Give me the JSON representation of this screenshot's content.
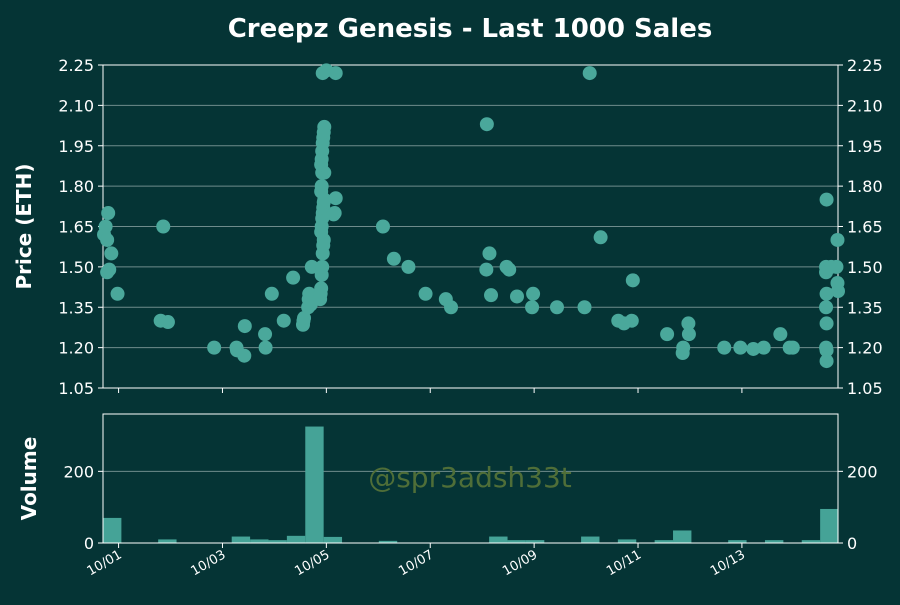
{
  "title": "Creepz Genesis - Last 1000 Sales",
  "watermark": "@spr3adsh33t",
  "colors": {
    "background": "#053435",
    "point": "#4aa89b",
    "bar": "#45a397",
    "grid": "#6f8c8c",
    "text": "#ffffff",
    "watermark": "#4f6e38"
  },
  "chart_data": [
    {
      "type": "scatter",
      "ylabel": "Price (ETH)",
      "ylim": [
        1.05,
        2.25
      ],
      "yticks": [
        1.05,
        1.2,
        1.35,
        1.5,
        1.65,
        1.8,
        1.95,
        2.1,
        2.25
      ],
      "ytick_labels": [
        "1.05",
        "1.20",
        "1.35",
        "1.50",
        "1.65",
        "1.80",
        "1.95",
        "2.10",
        "2.25"
      ],
      "y_axis_both_sides": true,
      "grid": true,
      "x_unit": "days since 10/01",
      "xlim": [
        -0.3,
        13.85
      ],
      "points": [
        [
          -0.28,
          1.62
        ],
        [
          -0.25,
          1.65
        ],
        [
          -0.22,
          1.6
        ],
        [
          -0.22,
          1.48
        ],
        [
          -0.2,
          1.7
        ],
        [
          -0.18,
          1.49
        ],
        [
          -0.14,
          1.55
        ],
        [
          -0.02,
          1.4
        ],
        [
          0.81,
          1.3
        ],
        [
          0.86,
          1.65
        ],
        [
          0.95,
          1.295
        ],
        [
          1.84,
          1.2
        ],
        [
          2.27,
          1.2
        ],
        [
          2.28,
          1.19
        ],
        [
          2.42,
          1.17
        ],
        [
          2.43,
          1.28
        ],
        [
          2.82,
          1.25
        ],
        [
          2.83,
          1.2
        ],
        [
          2.95,
          1.4
        ],
        [
          3.18,
          1.3
        ],
        [
          3.36,
          1.46
        ],
        [
          3.55,
          1.285
        ],
        [
          3.56,
          1.3
        ],
        [
          3.57,
          1.31
        ],
        [
          3.65,
          1.35
        ],
        [
          3.66,
          1.38
        ],
        [
          3.67,
          1.4
        ],
        [
          3.7,
          1.36
        ],
        [
          3.72,
          1.5
        ],
        [
          3.88,
          1.38
        ],
        [
          3.89,
          1.4
        ],
        [
          3.9,
          1.42
        ],
        [
          3.91,
          1.47
        ],
        [
          3.92,
          1.5
        ],
        [
          3.93,
          1.55
        ],
        [
          3.94,
          1.58
        ],
        [
          3.95,
          1.6
        ],
        [
          3.9,
          1.63
        ],
        [
          3.91,
          1.65
        ],
        [
          3.92,
          1.68
        ],
        [
          3.93,
          1.7
        ],
        [
          3.94,
          1.72
        ],
        [
          3.95,
          1.74
        ],
        [
          3.96,
          1.75
        ],
        [
          3.9,
          1.78
        ],
        [
          3.91,
          1.8
        ],
        [
          3.92,
          1.85
        ],
        [
          3.96,
          1.85
        ],
        [
          3.9,
          1.88
        ],
        [
          3.91,
          1.9
        ],
        [
          3.92,
          1.93
        ],
        [
          3.93,
          1.96
        ],
        [
          3.94,
          1.98
        ],
        [
          3.95,
          2.0
        ],
        [
          3.96,
          2.02
        ],
        [
          3.93,
          2.22
        ],
        [
          4.0,
          2.23
        ],
        [
          4.14,
          1.695
        ],
        [
          4.16,
          1.7
        ],
        [
          4.18,
          1.755
        ],
        [
          4.18,
          2.22
        ],
        [
          5.09,
          1.65
        ],
        [
          5.3,
          1.53
        ],
        [
          5.58,
          1.5
        ],
        [
          5.91,
          1.4
        ],
        [
          6.3,
          1.38
        ],
        [
          6.4,
          1.35
        ],
        [
          7.09,
          2.03
        ],
        [
          7.08,
          1.49
        ],
        [
          7.14,
          1.55
        ],
        [
          7.17,
          1.395
        ],
        [
          7.47,
          1.5
        ],
        [
          7.52,
          1.49
        ],
        [
          7.67,
          1.39
        ],
        [
          7.96,
          1.35
        ],
        [
          7.98,
          1.4
        ],
        [
          8.44,
          1.35
        ],
        [
          8.97,
          1.35
        ],
        [
          9.07,
          2.22
        ],
        [
          9.28,
          1.61
        ],
        [
          9.62,
          1.3
        ],
        [
          9.73,
          1.29
        ],
        [
          9.88,
          1.3
        ],
        [
          9.9,
          1.45
        ],
        [
          10.56,
          1.25
        ],
        [
          10.86,
          1.18
        ],
        [
          10.87,
          1.2
        ],
        [
          10.97,
          1.29
        ],
        [
          10.98,
          1.25
        ],
        [
          11.66,
          1.2
        ],
        [
          11.97,
          1.2
        ],
        [
          12.22,
          1.195
        ],
        [
          12.42,
          1.2
        ],
        [
          12.74,
          1.25
        ],
        [
          12.92,
          1.2
        ],
        [
          12.98,
          1.2
        ],
        [
          13.63,
          1.75
        ],
        [
          13.62,
          1.5
        ],
        [
          13.62,
          1.48
        ],
        [
          13.63,
          1.4
        ],
        [
          13.62,
          1.35
        ],
        [
          13.63,
          1.29
        ],
        [
          13.62,
          1.2
        ],
        [
          13.63,
          1.19
        ],
        [
          13.63,
          1.15
        ],
        [
          13.72,
          1.5
        ],
        [
          13.82,
          1.5
        ],
        [
          13.84,
          1.6
        ],
        [
          13.84,
          1.44
        ],
        [
          13.85,
          1.41
        ]
      ]
    },
    {
      "type": "bar",
      "ylabel": "Volume",
      "ylim": [
        0,
        360
      ],
      "yticks": [
        0,
        200
      ],
      "ytick_labels": [
        "0",
        "200"
      ],
      "x_unit": "days since 10/01",
      "xlim": [
        -0.3,
        13.85
      ],
      "bin_width": 0.354,
      "bins": [
        [
          -0.123,
          70
        ],
        [
          0.939,
          10
        ],
        [
          2.355,
          18
        ],
        [
          2.709,
          10
        ],
        [
          3.063,
          8
        ],
        [
          3.417,
          20
        ],
        [
          3.771,
          325
        ],
        [
          4.125,
          17
        ],
        [
          5.187,
          6
        ],
        [
          7.311,
          18
        ],
        [
          7.665,
          8
        ],
        [
          8.019,
          8
        ],
        [
          9.081,
          18
        ],
        [
          9.789,
          10
        ],
        [
          10.497,
          8
        ],
        [
          10.851,
          35
        ],
        [
          11.913,
          8
        ],
        [
          12.621,
          8
        ],
        [
          13.329,
          8
        ],
        [
          13.683,
          95
        ]
      ],
      "x_ticks": [
        0,
        2,
        4,
        6,
        8,
        10,
        12
      ],
      "x_tick_labels": [
        "10/01",
        "10/03",
        "10/05",
        "10/07",
        "10/09",
        "10/11",
        "10/13"
      ]
    }
  ]
}
